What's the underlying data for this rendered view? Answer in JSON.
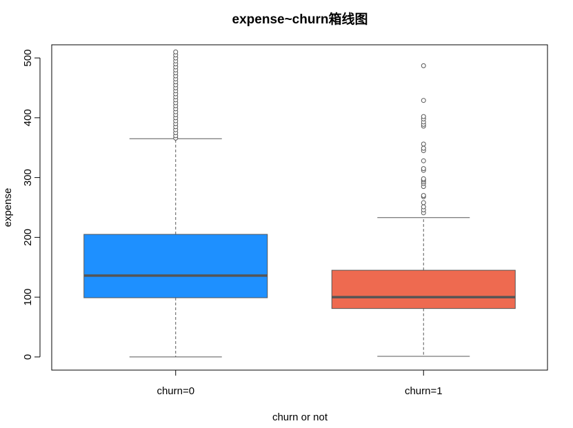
{
  "chart_data": {
    "type": "box",
    "title": "expense~churn箱线图",
    "xlabel": "churn or not",
    "ylabel": "expense",
    "ylim": [
      -22,
      522
    ],
    "yticks": [
      0,
      100,
      200,
      300,
      400,
      500
    ],
    "grid": false,
    "legend": "none",
    "categories": [
      "churn=0",
      "churn=1"
    ],
    "series": [
      {
        "category": "churn=0",
        "color": "#1E90FF",
        "whisker_low": 0,
        "q1": 99,
        "median": 136,
        "q3": 205,
        "whisker_high": 365,
        "outliers": [
          366,
          370,
          375,
          380,
          385,
          390,
          395,
          400,
          405,
          410,
          415,
          420,
          425,
          430,
          435,
          440,
          445,
          450,
          455,
          460,
          465,
          470,
          475,
          480,
          485,
          490,
          495,
          500,
          505,
          510
        ]
      },
      {
        "category": "churn=1",
        "color": "#EE6A50",
        "whisker_low": 1,
        "q1": 81,
        "median": 100,
        "q3": 145,
        "whisker_high": 233,
        "outliers": [
          241,
          246,
          251,
          258,
          268,
          270,
          285,
          290,
          293,
          296,
          298,
          312,
          315,
          328,
          345,
          349,
          356,
          386,
          389,
          393,
          398,
          402,
          429,
          487
        ]
      }
    ]
  }
}
